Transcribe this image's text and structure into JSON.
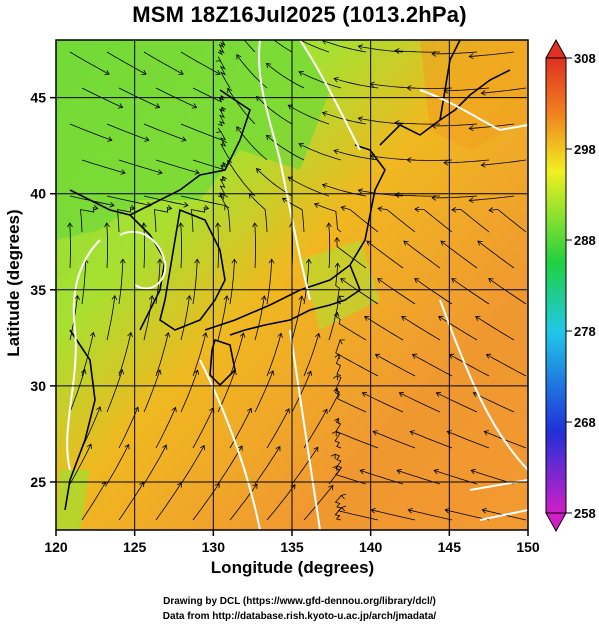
{
  "title": "MSM 18Z16Jul2025 (1013.2hPa)",
  "xlabel": "Longitude (degrees)",
  "ylabel": "Latitude  (degrees)",
  "x_ticks": [
    "120",
    "125",
    "130",
    "135",
    "140",
    "145",
    "150"
  ],
  "y_ticks": [
    "25",
    "30",
    "35",
    "40",
    "45"
  ],
  "colorbar_ticks": [
    "308",
    "298",
    "288",
    "278",
    "268",
    "258"
  ],
  "footer": {
    "line1": "Drawing by DCL (https://www.gfd-dennou.org/library/dcl/)",
    "line2": "Data from http://database.rish.kyoto-u.ac.jp/arch/jmadata/"
  },
  "map": {
    "lon_range": [
      120,
      150
    ],
    "lat_range": [
      22.5,
      48
    ],
    "colorbar_range": [
      258,
      308
    ],
    "colorbar_colors": [
      "#d01fc8",
      "#2030d8",
      "#20c8e8",
      "#20d040",
      "#f0f020",
      "#f08020",
      "#e03020"
    ]
  }
}
